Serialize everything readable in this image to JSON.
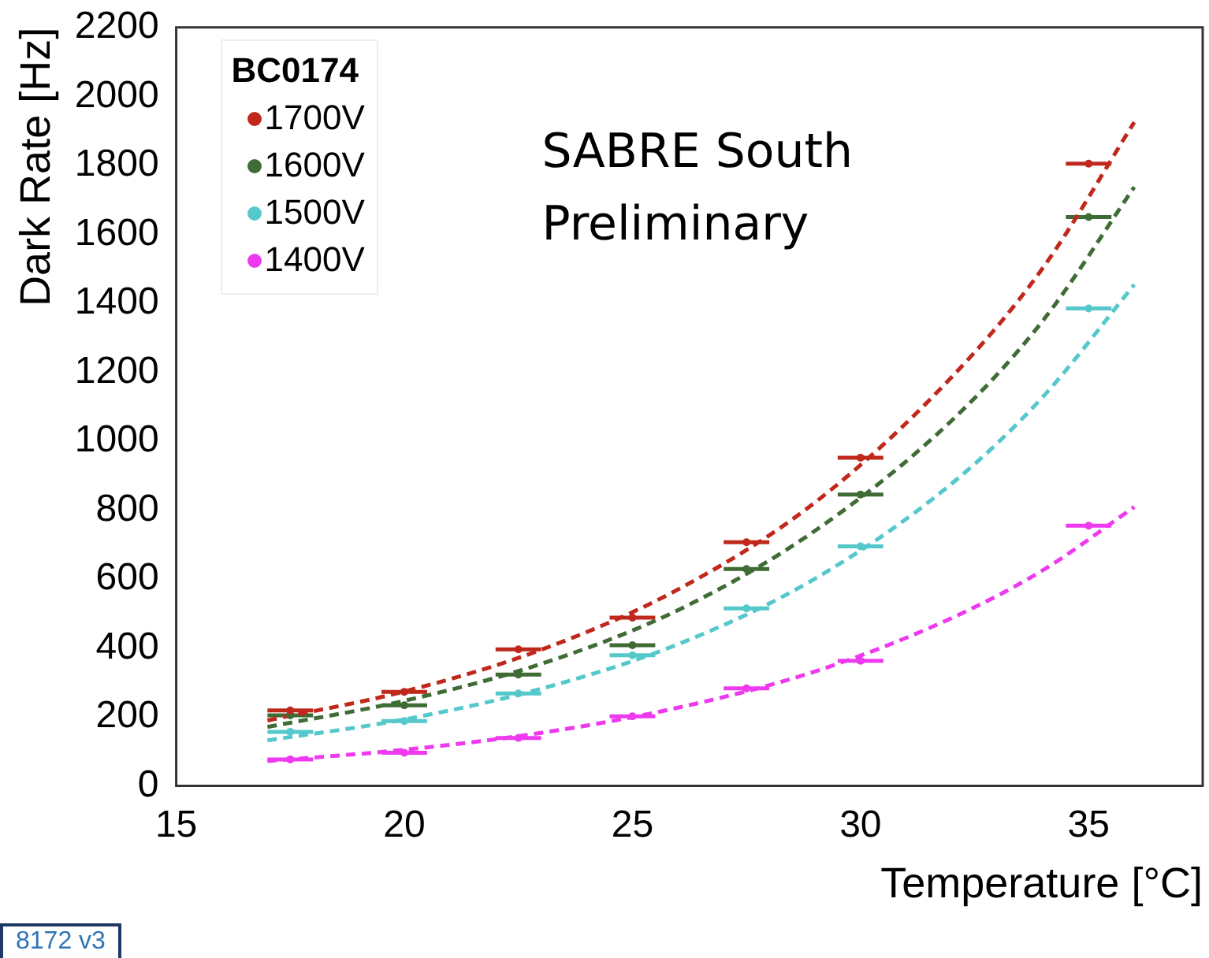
{
  "chart_data": {
    "type": "scatter",
    "xlabel": "Temperature [°C]",
    "ylabel": "Dark Rate [Hz]",
    "legend_title": "BC0174",
    "legend": "top left",
    "marker": "circle",
    "grid": false,
    "xlim": [
      15,
      37.5
    ],
    "xticks": [
      15,
      20,
      25,
      30,
      35
    ],
    "ylim": [
      0,
      2200
    ],
    "yticks": [
      0,
      200,
      400,
      600,
      800,
      1000,
      1200,
      1400,
      1600,
      1800,
      2000,
      2200
    ],
    "x": [
      17.5,
      20,
      22.5,
      25,
      27.5,
      30,
      35
    ],
    "annotations": [
      "SABRE South",
      "Preliminary",
      "8172 v3"
    ],
    "series": [
      {
        "name": "1700V",
        "color": "#c0281c",
        "values": [
          219,
          273,
          396,
          488,
          707,
          952,
          1805
        ],
        "xerrors": [
          0.5,
          0.5,
          0.5,
          0.5,
          0.5,
          0.5,
          0.5
        ]
      },
      {
        "name": "1600V",
        "color": "#3f6b35",
        "values": [
          205,
          234,
          323,
          408,
          629,
          845,
          1650
        ],
        "xerrors": [
          0.5,
          0.5,
          0.5,
          0.5,
          0.5,
          0.5,
          0.5
        ]
      },
      {
        "name": "1500V",
        "color": "#55c8cc",
        "values": [
          157,
          188,
          268,
          379,
          515,
          695,
          1385
        ],
        "xerrors": [
          0.5,
          0.5,
          0.5,
          0.5,
          0.5,
          0.5,
          0.5
        ]
      },
      {
        "name": "1400V",
        "color": "#ee3aee",
        "values": [
          77,
          96,
          139,
          202,
          283,
          363,
          755
        ],
        "xerrors": [
          0.5,
          0.5,
          0.5,
          0.5,
          0.5,
          0.5,
          0.5
        ]
      },
      {
        "type": "line",
        "line_style": "dashed",
        "marker": "none",
        "color": "#c0281c",
        "x": [
          17,
          20,
          23,
          26,
          29,
          32,
          34,
          36
        ],
        "values": [
          190,
          274,
          395,
          570,
          822,
          1186,
          1503,
          1925
        ]
      },
      {
        "type": "line",
        "line_style": "dashed",
        "marker": "none",
        "color": "#3f6b35",
        "x": [
          17,
          20,
          23,
          26,
          29,
          32,
          34,
          36
        ],
        "values": [
          171,
          247,
          354,
          510,
          740,
          1060,
          1350,
          1737
        ]
      },
      {
        "type": "line",
        "line_style": "dashed",
        "marker": "none",
        "color": "#55c8cc",
        "x": [
          17,
          20,
          23,
          26,
          29,
          32,
          34,
          36
        ],
        "values": [
          132,
          193,
          282,
          411,
          601,
          877,
          1129,
          1454
        ]
      },
      {
        "type": "line",
        "line_style": "dashed",
        "marker": "none",
        "color": "#ee3aee",
        "x": [
          17,
          20,
          23,
          26,
          29,
          32,
          34,
          36
        ],
        "values": [
          72,
          105,
          154,
          227,
          332,
          487,
          626,
          809
        ]
      }
    ]
  }
}
